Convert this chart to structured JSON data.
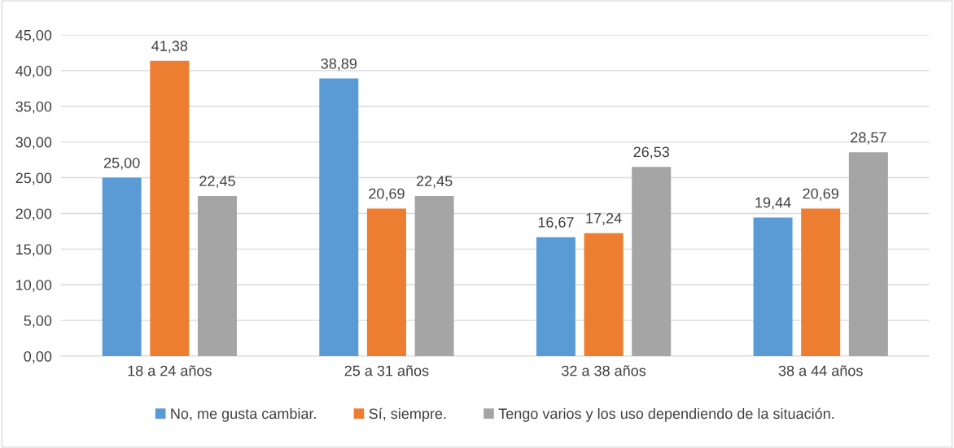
{
  "chart_data": {
    "type": "bar",
    "categories": [
      "18 a 24 años",
      "25 a 31 años",
      "32 a 38 años",
      "38 a 44 años"
    ],
    "series": [
      {
        "name": "No, me gusta cambiar.",
        "color": "#5b9bd5",
        "values": [
          25.0,
          38.89,
          16.67,
          19.44
        ],
        "value_labels": [
          "25,00",
          "38,89",
          "16,67",
          "19,44"
        ]
      },
      {
        "name": "Sí, siempre.",
        "color": "#ed7d31",
        "values": [
          41.38,
          20.69,
          17.24,
          20.69
        ],
        "value_labels": [
          "41,38",
          "20,69",
          "17,24",
          "20,69"
        ]
      },
      {
        "name": "Tengo varios y los uso dependiendo de la situación.",
        "color": "#a5a5a5",
        "values": [
          22.45,
          22.45,
          26.53,
          28.57
        ],
        "value_labels": [
          "22,45",
          "22,45",
          "26,53",
          "28,57"
        ]
      }
    ],
    "ylim": [
      0,
      45
    ],
    "yticks": [
      {
        "value": 0,
        "label": "0,00"
      },
      {
        "value": 5,
        "label": "5,00"
      },
      {
        "value": 10,
        "label": "10,00"
      },
      {
        "value": 15,
        "label": "15,00"
      },
      {
        "value": 20,
        "label": "20,00"
      },
      {
        "value": 25,
        "label": "25,00"
      },
      {
        "value": 30,
        "label": "30,00"
      },
      {
        "value": 35,
        "label": "35,00"
      },
      {
        "value": 40,
        "label": "40,00"
      },
      {
        "value": 45,
        "label": "45,00"
      }
    ],
    "grid": "y",
    "legend": "bottom"
  }
}
